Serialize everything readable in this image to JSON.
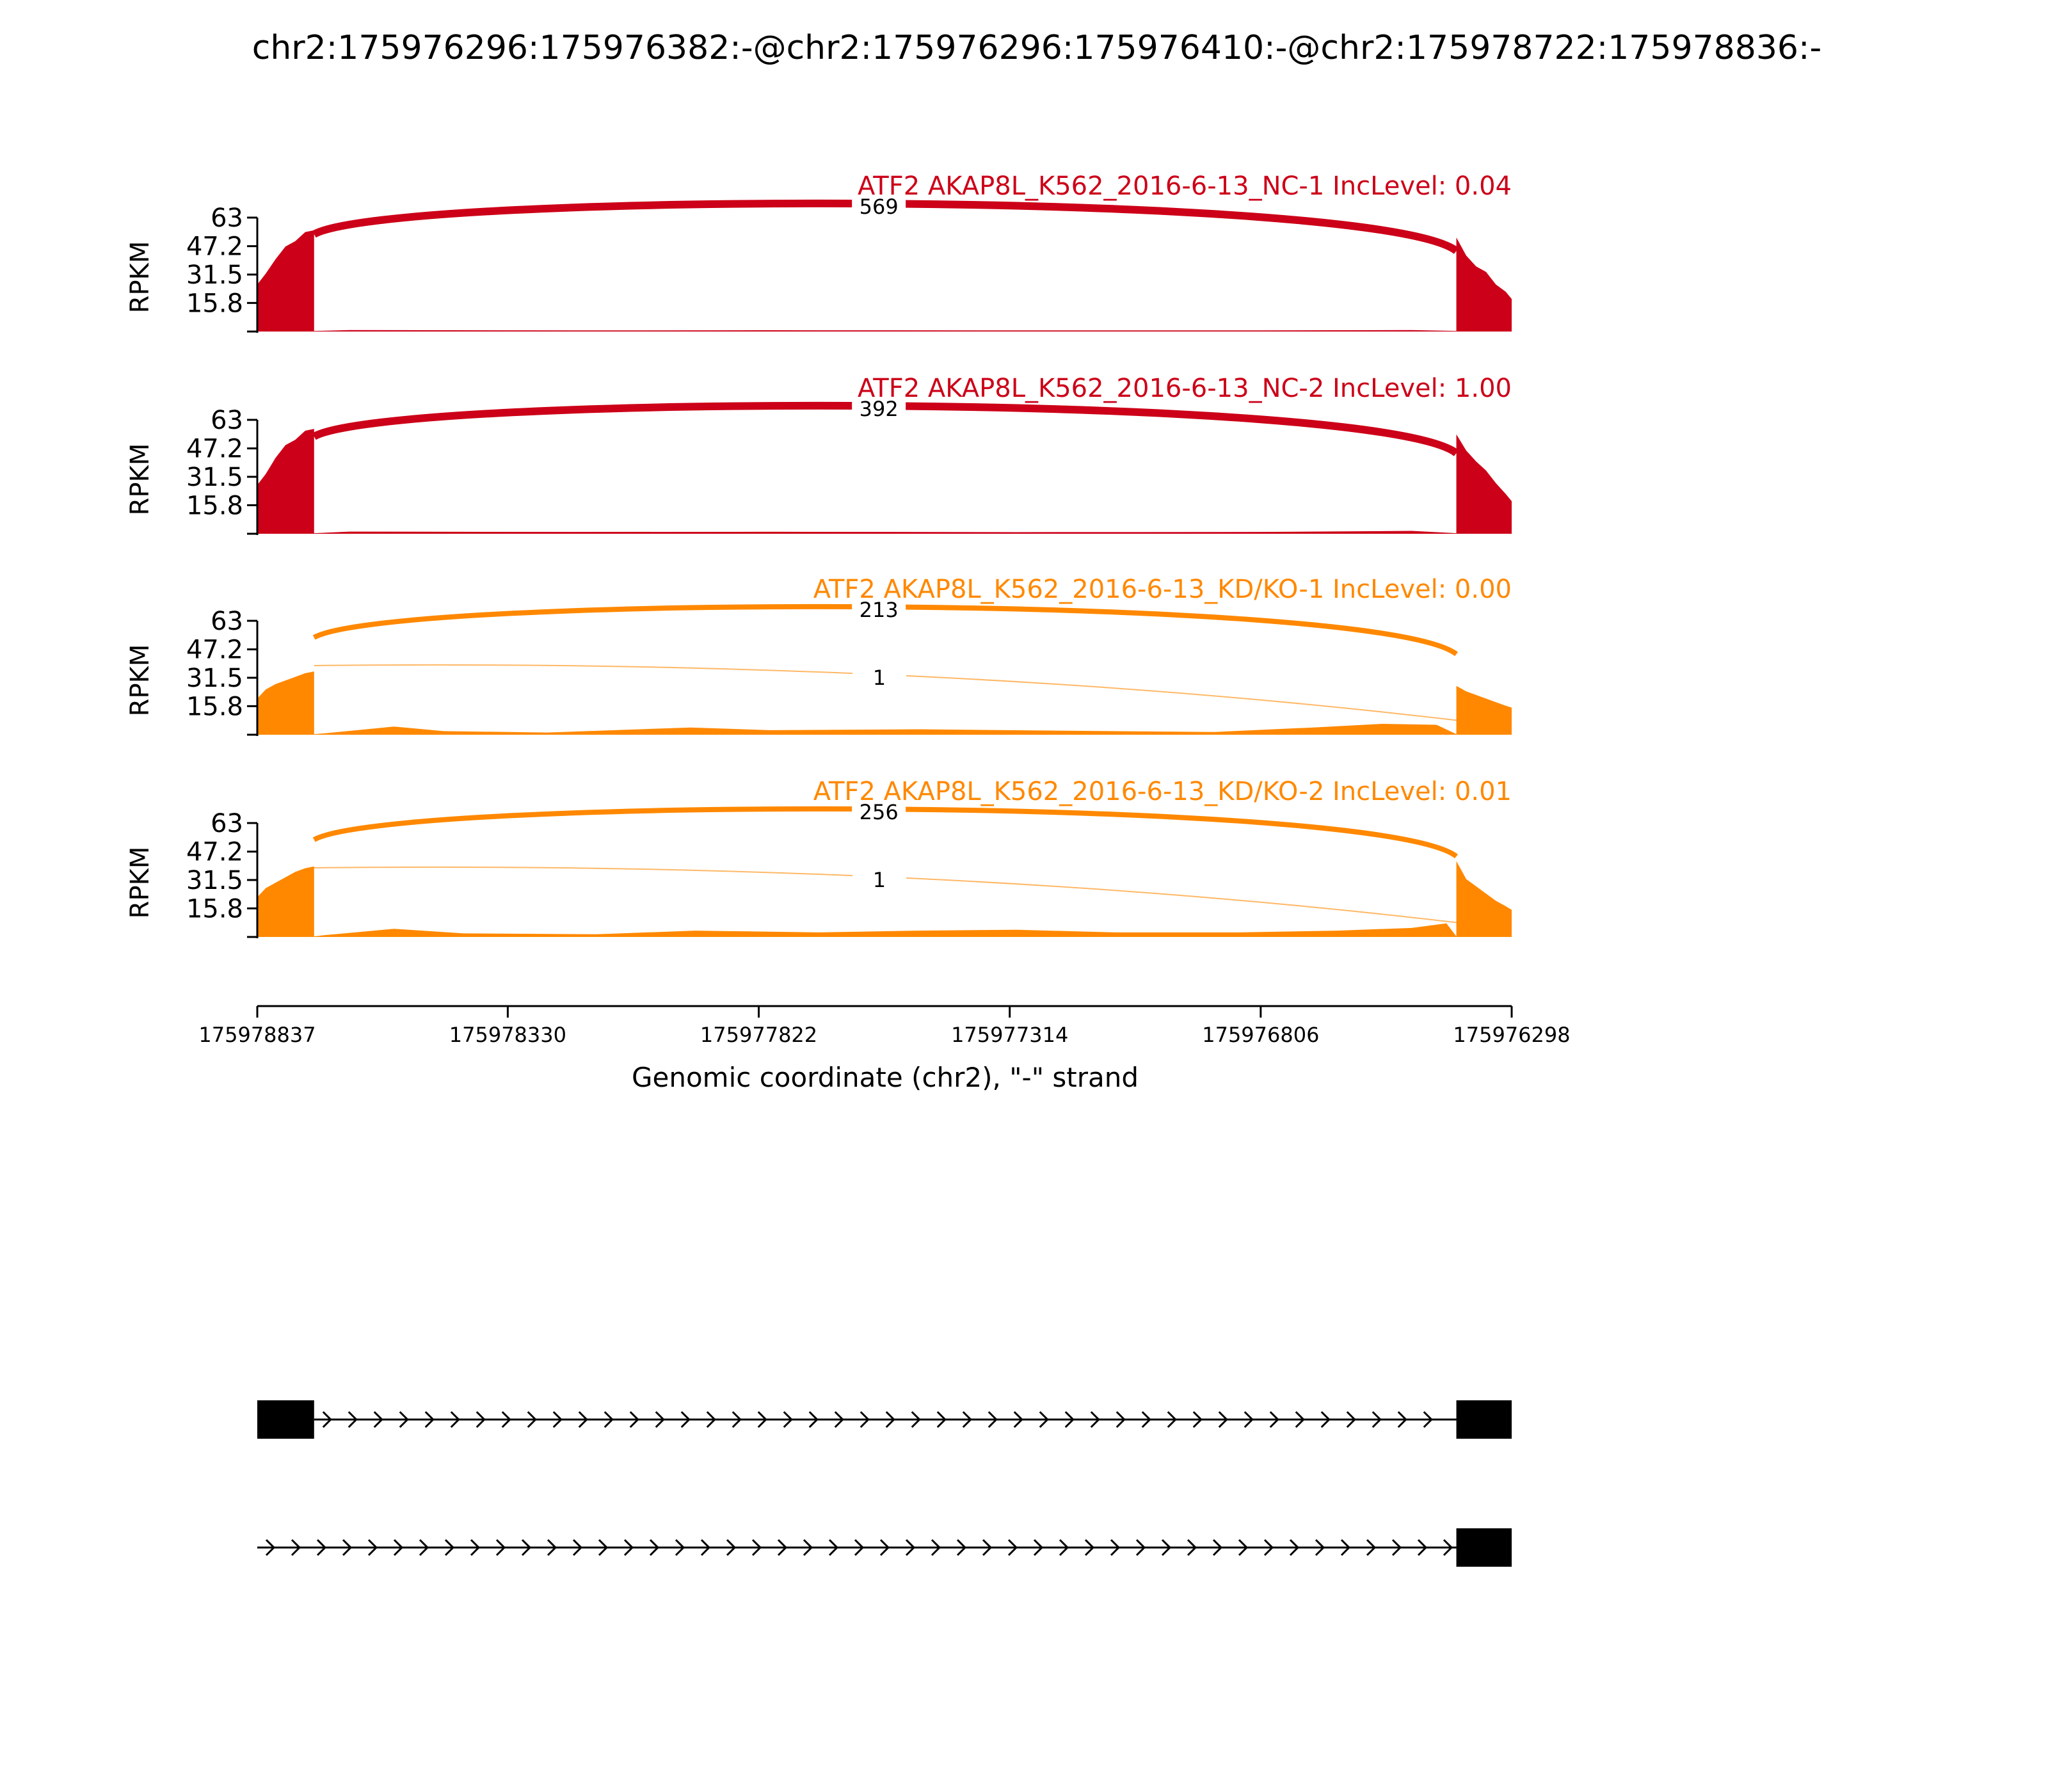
{
  "chart_data": {
    "type": "area",
    "title": "chr2:175976296:175976382:-@chr2:175976296:175976410:-@chr2:175978722:175978836:-",
    "xlabel": "Genomic coordinate (chr2), \"-\" strand",
    "ylabel": "RPKM",
    "xlim": [
      175978837,
      175976298
    ],
    "x_reversed": true,
    "x_ticks": [
      "175978837",
      "175978330",
      "175977822",
      "175977314",
      "175976806",
      "175976298"
    ],
    "ylim": [
      0,
      63
    ],
    "y_ticks": [
      "15.8",
      "31.5",
      "47.2",
      "63"
    ],
    "colors": {
      "NC": "#cc0018",
      "KD": "#ff8800",
      "gene": "#000000"
    },
    "series": [
      {
        "name": "ATF2 AKAP8L_K562_2016-6-13_NC-1 IncLevel: 0.04",
        "color": "#cc0018",
        "junctions": [
          {
            "start": 175978722,
            "end": 175976410,
            "count": "569",
            "weight": "major"
          }
        ],
        "coverage": {
          "exon_left": [
            [
              175978837,
              26
            ],
            [
              175978820,
              32
            ],
            [
              175978800,
              40
            ],
            [
              175978780,
              47
            ],
            [
              175978760,
              50
            ],
            [
              175978740,
              55
            ],
            [
              175978722,
              56
            ]
          ],
          "intron": [
            [
              175978650,
              0.8
            ],
            [
              175978200,
              0.6
            ],
            [
              175977800,
              0.7
            ],
            [
              175977300,
              0.6
            ],
            [
              175976800,
              0.6
            ],
            [
              175976500,
              0.8
            ]
          ],
          "exon_right": [
            [
              175976410,
              52
            ],
            [
              175976390,
              42
            ],
            [
              175976370,
              36
            ],
            [
              175976350,
              33
            ],
            [
              175976330,
              26
            ],
            [
              175976310,
              22
            ],
            [
              175976298,
              18
            ]
          ]
        }
      },
      {
        "name": "ATF2 AKAP8L_K562_2016-6-13_NC-2 IncLevel: 1.00",
        "color": "#cc0018",
        "junctions": [
          {
            "start": 175978722,
            "end": 175976410,
            "count": "392",
            "weight": "major"
          }
        ],
        "coverage": {
          "exon_left": [
            [
              175978837,
              27
            ],
            [
              175978820,
              33
            ],
            [
              175978800,
              42
            ],
            [
              175978780,
              49
            ],
            [
              175978760,
              52
            ],
            [
              175978740,
              57
            ],
            [
              175978722,
              58
            ]
          ],
          "intron": [
            [
              175978650,
              1.2
            ],
            [
              175978200,
              1.0
            ],
            [
              175977800,
              1.1
            ],
            [
              175977300,
              0.9
            ],
            [
              175976800,
              1.0
            ],
            [
              175976500,
              1.6
            ]
          ],
          "exon_right": [
            [
              175976410,
              55
            ],
            [
              175976390,
              46
            ],
            [
              175976370,
              40
            ],
            [
              175976350,
              35
            ],
            [
              175976330,
              28
            ],
            [
              175976310,
              22
            ],
            [
              175976298,
              18
            ]
          ]
        }
      },
      {
        "name": "ATF2 AKAP8L_K562_2016-6-13_KD/KO-1 IncLevel: 0.00",
        "color": "#ff8800",
        "junctions": [
          {
            "start": 175978722,
            "end": 175976410,
            "count": "213",
            "weight": "major"
          },
          {
            "start": 175978722,
            "end": 175976382,
            "count": "1",
            "weight": "minor"
          }
        ],
        "coverage": {
          "exon_left": [
            [
              175978837,
              20
            ],
            [
              175978820,
              25
            ],
            [
              175978800,
              28
            ],
            [
              175978780,
              30
            ],
            [
              175978760,
              32
            ],
            [
              175978740,
              34
            ],
            [
              175978722,
              35
            ]
          ],
          "intron": [
            [
              175978700,
              0.8
            ],
            [
              175978560,
              4.5
            ],
            [
              175978460,
              2.0
            ],
            [
              175978250,
              1.2
            ],
            [
              175977960,
              4.0
            ],
            [
              175977800,
              2.5
            ],
            [
              175977500,
              3.0
            ],
            [
              175977200,
              2.2
            ],
            [
              175976900,
              1.5
            ],
            [
              175976700,
              4.0
            ],
            [
              175976560,
              6.0
            ],
            [
              175976450,
              5.5
            ]
          ],
          "exon_right": [
            [
              175976410,
              27
            ],
            [
              175976390,
              24
            ],
            [
              175976370,
              22
            ],
            [
              175976350,
              20
            ],
            [
              175976330,
              18
            ],
            [
              175976310,
              16
            ],
            [
              175976298,
              15
            ]
          ]
        }
      },
      {
        "name": "ATF2 AKAP8L_K562_2016-6-13_KD/KO-2 IncLevel: 0.01",
        "color": "#ff8800",
        "junctions": [
          {
            "start": 175978722,
            "end": 175976410,
            "count": "256",
            "weight": "major"
          },
          {
            "start": 175978722,
            "end": 175976382,
            "count": "1",
            "weight": "minor"
          }
        ],
        "coverage": {
          "exon_left": [
            [
              175978837,
              22
            ],
            [
              175978820,
              27
            ],
            [
              175978800,
              30
            ],
            [
              175978780,
              33
            ],
            [
              175978760,
              36
            ],
            [
              175978740,
              38
            ],
            [
              175978722,
              39
            ]
          ],
          "intron": [
            [
              175978700,
              1.0
            ],
            [
              175978560,
              4.5
            ],
            [
              175978420,
              2.0
            ],
            [
              175978150,
              1.5
            ],
            [
              175977950,
              3.5
            ],
            [
              175977700,
              2.5
            ],
            [
              175977500,
              3.5
            ],
            [
              175977300,
              4.0
            ],
            [
              175977100,
              2.5
            ],
            [
              175976850,
              2.5
            ],
            [
              175976650,
              3.5
            ],
            [
              175976500,
              5.0
            ],
            [
              175976430,
              7.5
            ]
          ],
          "exon_right": [
            [
              175976410,
              42
            ],
            [
              175976390,
              32
            ],
            [
              175976370,
              28
            ],
            [
              175976350,
              24
            ],
            [
              175976330,
              20
            ],
            [
              175976310,
              17
            ],
            [
              175976298,
              15
            ]
          ]
        }
      }
    ],
    "gene_models": [
      {
        "exons": [
          [
            175978837,
            175978722
          ],
          [
            175976410,
            175976298
          ]
        ]
      },
      {
        "exons": [
          [
            175976410,
            175976298
          ]
        ],
        "line_start": 175978837
      }
    ]
  }
}
